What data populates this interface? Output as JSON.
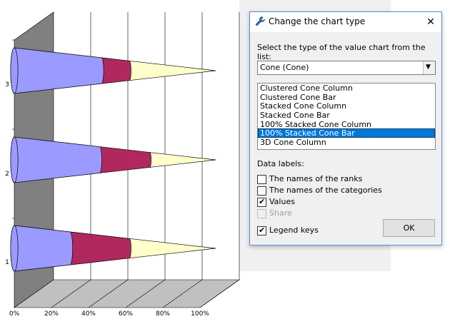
{
  "chart": {
    "y_categories": [
      "3",
      "2",
      "1"
    ],
    "x_ticks": [
      "0%",
      "20%",
      "40%",
      "60%",
      "80%",
      "100%"
    ],
    "colors": {
      "series1": "#9a9aff",
      "series2": "#b0285e",
      "series3": "#ffffcc",
      "wall": "#808080",
      "floor": "#c0c0c0"
    },
    "chart_data": {
      "type": "bar",
      "subtype": "100% stacked cone bar (3D)",
      "categories": [
        "1",
        "2",
        "3"
      ],
      "series": [
        {
          "values": [
            30,
            46,
            47
          ]
        },
        {
          "values": [
            62,
            73,
            62
          ]
        },
        {
          "values": [
            100,
            100,
            100
          ]
        }
      ],
      "xlim": [
        0,
        100
      ],
      "x_tick_labels": [
        "0%",
        "20%",
        "40%",
        "60%",
        "80%",
        "100%"
      ],
      "grid": true,
      "legend": "none"
    }
  },
  "dialog": {
    "title": "Change the chart type",
    "close_glyph": "✕",
    "prompt": "Select the type of the value chart from the list:",
    "combo_value": "Cone (Cone)",
    "list_items": [
      "Clustered Cone Column",
      "Clustered Cone Bar",
      "Stacked Cone Column",
      "Stacked Cone Bar",
      "100% Stacked Cone Column",
      "100% Stacked Cone Bar",
      "3D Cone Column"
    ],
    "selected_item": "100% Stacked Cone Bar",
    "data_labels_heading": "Data labels:",
    "checkboxes": {
      "ranks": {
        "label": "The names of the ranks",
        "checked": false
      },
      "categories": {
        "label": "The names of the categories",
        "checked": false
      },
      "values": {
        "label": "Values",
        "checked": true
      },
      "share": {
        "label": "Share",
        "checked": false,
        "disabled": true
      },
      "legend_keys": {
        "label": "Legend keys",
        "checked": true
      }
    },
    "ok_label": "OK"
  }
}
